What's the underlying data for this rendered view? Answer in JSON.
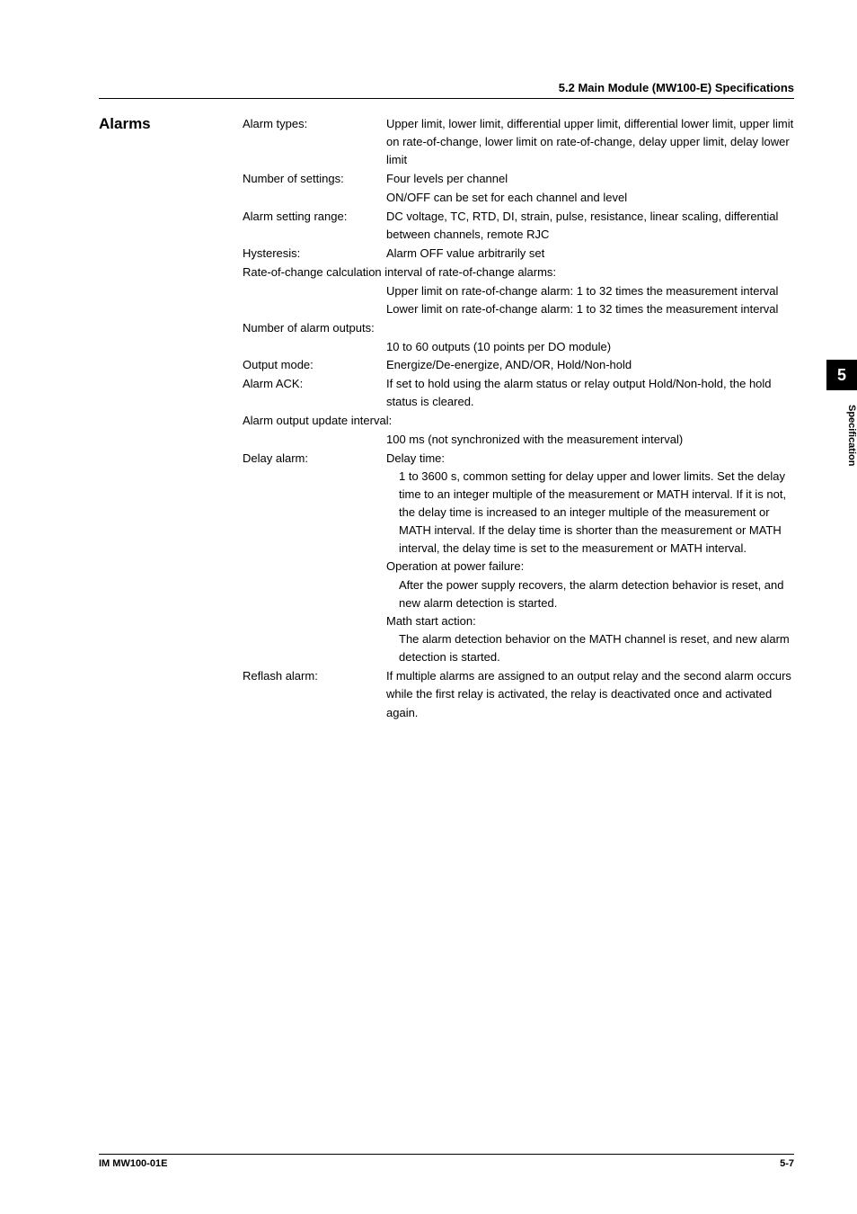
{
  "header": {
    "section_title": "5.2  Main Module (MW100-E) Specifications"
  },
  "side_heading": "Alarms",
  "side_tab": {
    "number": "5",
    "label": "Specification"
  },
  "specs": [
    {
      "label": "Alarm types:",
      "value": "Upper limit, lower limit, differential upper limit, differential lower limit, upper limit on rate-of-change, lower limit on rate-of-change, delay upper limit, delay lower limit"
    },
    {
      "label": "Number of settings:",
      "value": "Four levels per channel\nON/OFF can be set for each channel and level"
    },
    {
      "label": "Alarm setting range:",
      "value": "DC voltage, TC, RTD, DI, strain, pulse, resistance, linear scaling, differential between channels, remote RJC"
    },
    {
      "label": "Hysteresis:",
      "value": "Alarm OFF value arbitrarily set"
    },
    {
      "full_label": "Rate-of-change calculation interval of rate-of-change alarms:",
      "indented": "Upper limit on rate-of-change alarm: 1 to 32 times the measurement interval\nLower limit on rate-of-change alarm: 1 to 32 times the measurement interval"
    },
    {
      "full_label": "Number of alarm outputs:",
      "indented": "10 to 60 outputs (10 points per DO module)"
    },
    {
      "label": "Output mode:",
      "value": "Energize/De-energize, AND/OR, Hold/Non-hold"
    },
    {
      "label": "Alarm ACK:",
      "value": "If set to hold using the alarm status or relay output Hold/Non-hold, the hold status is cleared."
    },
    {
      "full_label": "Alarm output update interval:",
      "indented": "100 ms (not synchronized with the measurement interval)"
    },
    {
      "label": "Delay alarm:",
      "value": "Delay time:",
      "sub_items": [
        "1 to 3600 s, common setting for delay upper and lower limits. Set the delay time to an integer multiple of the measurement or MATH interval. If it is not, the delay time is increased to an integer multiple of the measurement or MATH interval. If the delay time is shorter than the measurement or MATH interval, the delay time is set to the measurement or MATH interval."
      ],
      "extra_heads": [
        {
          "head": "Operation at power failure:",
          "body": "After the power supply recovers, the alarm detection behavior is reset, and new alarm detection is started."
        },
        {
          "head": "Math start action:",
          "body": "The alarm detection behavior on the MATH channel is reset, and new alarm detection is started."
        }
      ]
    },
    {
      "label": "Reflash alarm:",
      "value": "If multiple alarms are assigned to an output relay and the second alarm occurs while the first relay is activated, the relay is deactivated once and activated again."
    }
  ],
  "footer": {
    "left": "IM MW100-01E",
    "right": "5-7"
  }
}
